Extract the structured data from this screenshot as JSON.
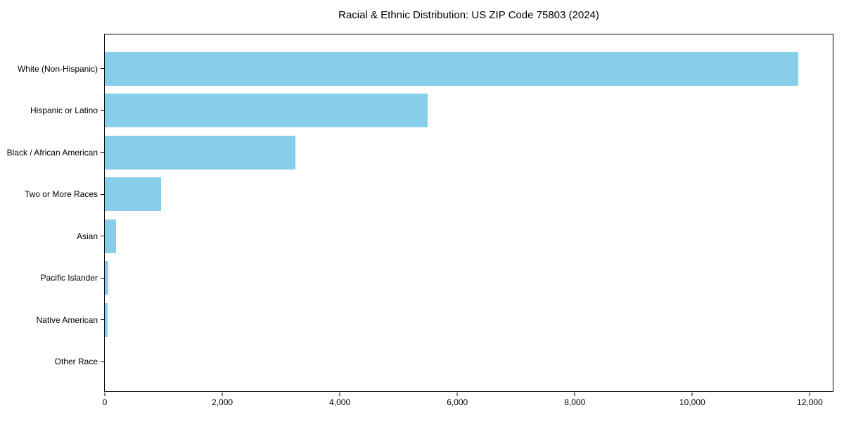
{
  "chart_data": {
    "type": "bar",
    "orientation": "horizontal",
    "title": "Racial & Ethnic Distribution: US ZIP Code 75803 (2024)",
    "categories": [
      "White (Non-Hispanic)",
      "Hispanic or Latino",
      "Black / African American",
      "Two or More Races",
      "Asian",
      "Pacific Islander",
      "Native American",
      "Other Race"
    ],
    "values": [
      11800,
      5500,
      3250,
      960,
      190,
      60,
      45,
      0
    ],
    "xlabel": "",
    "ylabel": "",
    "xlim": [
      0,
      12390
    ],
    "xticks": [
      0,
      2000,
      4000,
      6000,
      8000,
      10000,
      12000
    ],
    "xtick_labels": [
      "0",
      "2,000",
      "4,000",
      "6,000",
      "8,000",
      "10,000",
      "12,000"
    ],
    "bar_color": "#87CEEB",
    "spine_color": "#000000",
    "background_color": "#ffffff",
    "grid": false,
    "legend_position": "none"
  }
}
